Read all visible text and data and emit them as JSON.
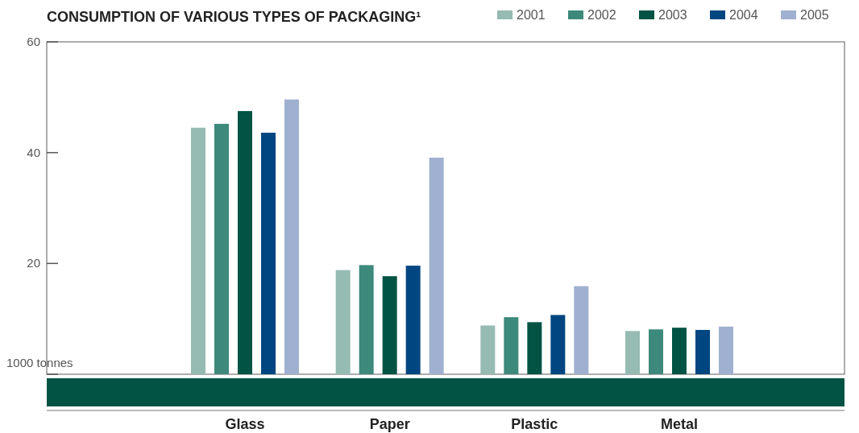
{
  "chart_data": {
    "type": "bar",
    "title": "CONSUMPTION OF VARIOUS TYPES OF PACKAGING¹",
    "ylabel": "1000 tonnes",
    "categories": [
      "Glass",
      "Paper",
      "Plastic",
      "Metal"
    ],
    "ylim": [
      0,
      60
    ],
    "yticks": [
      {
        "value": 0,
        "label": null
      },
      20,
      40,
      60
    ],
    "legend": "top right",
    "grid": false,
    "series": [
      {
        "name": "2001",
        "color": "#96bbb3",
        "values": [
          44.5,
          18.8,
          8.8,
          7.8
        ]
      },
      {
        "name": "2002",
        "color": "#3d897b",
        "values": [
          45.2,
          19.7,
          10.3,
          8.1
        ]
      },
      {
        "name": "2003",
        "color": "#025343",
        "values": [
          47.5,
          17.7,
          9.4,
          8.4
        ]
      },
      {
        "name": "2004",
        "color": "#014680",
        "values": [
          43.6,
          19.6,
          10.7,
          8.0
        ]
      },
      {
        "name": "2005",
        "color": "#a0b0d0",
        "values": [
          49.6,
          39.1,
          15.9,
          8.6
        ]
      }
    ]
  }
}
